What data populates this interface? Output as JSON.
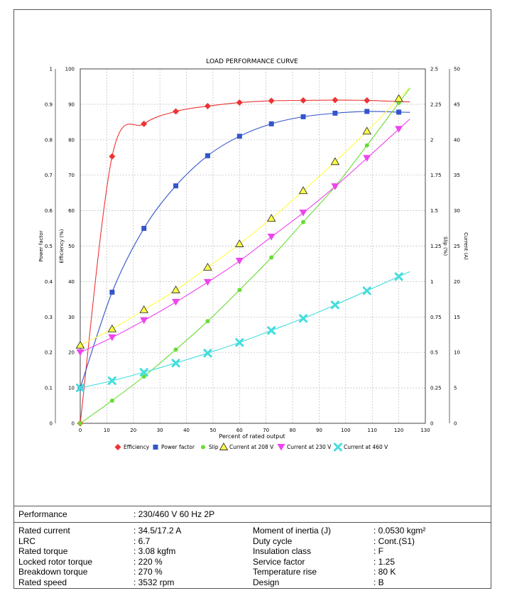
{
  "chart_data": {
    "type": "line",
    "title": "LOAD PERFORMANCE CURVE",
    "xlabel": "Percent of rated output",
    "xlim": [
      0,
      130
    ],
    "xticks": [
      0,
      10,
      20,
      30,
      40,
      50,
      60,
      70,
      80,
      90,
      100,
      110,
      120,
      130
    ],
    "grid": true,
    "legend_position": "bottom",
    "axes": {
      "power_factor": {
        "label": "Power factor",
        "range": [
          0,
          1
        ],
        "ticks": [
          "0",
          "0.1",
          "0.2",
          "0.3",
          "0.4",
          "0.5",
          "0.6",
          "0.7",
          "0.8",
          "0.9",
          "1"
        ]
      },
      "efficiency": {
        "label": "Efficiency (%)",
        "range": [
          0,
          100
        ],
        "ticks": [
          "0",
          "10",
          "20",
          "30",
          "40",
          "50",
          "60",
          "70",
          "80",
          "90",
          "100"
        ]
      },
      "slip": {
        "label": "Slip (%)",
        "range": [
          0,
          2.5
        ],
        "ticks": [
          "0",
          "0.25",
          "0.5",
          "0.75",
          "1",
          "1.25",
          "1.5",
          "1.75",
          "2",
          "2.25",
          "2.5"
        ]
      },
      "current": {
        "label": "Current (A)",
        "range": [
          0,
          50
        ],
        "ticks": [
          "0",
          "5",
          "10",
          "15",
          "20",
          "25",
          "30",
          "35",
          "40",
          "45",
          "50"
        ]
      }
    },
    "series": [
      {
        "name": "Efficiency",
        "axis": "efficiency",
        "color": "#ee3333",
        "marker": "diamond",
        "x": [
          0,
          12,
          24,
          36,
          48,
          60,
          72,
          84,
          96,
          108,
          120
        ],
        "y": [
          0,
          75.3,
          84.5,
          88,
          89.5,
          90.5,
          91,
          91.1,
          91.2,
          91.1,
          90.8
        ]
      },
      {
        "name": "Power factor",
        "axis": "power_factor",
        "color": "#3355cc",
        "marker": "square",
        "x": [
          0,
          12,
          24,
          36,
          48,
          60,
          72,
          84,
          96,
          108,
          120
        ],
        "y": [
          0.1,
          0.37,
          0.55,
          0.67,
          0.755,
          0.81,
          0.845,
          0.865,
          0.875,
          0.88,
          0.878
        ]
      },
      {
        "name": "Slip",
        "axis": "slip",
        "color": "#66dd33",
        "marker": "circle",
        "x": [
          0,
          12,
          24,
          36,
          48,
          60,
          72,
          84,
          96,
          108,
          120
        ],
        "y": [
          0,
          0.16,
          0.33,
          0.52,
          0.72,
          0.94,
          1.17,
          1.42,
          1.67,
          1.96,
          2.26
        ]
      },
      {
        "name": "Current at 208 V",
        "axis": "current",
        "color": "#ffff44",
        "marker": "triangle",
        "x": [
          0,
          12,
          24,
          36,
          48,
          60,
          72,
          84,
          96,
          108,
          120
        ],
        "y": [
          11,
          13.3,
          16,
          18.8,
          22,
          25.3,
          28.9,
          32.8,
          36.9,
          41.2,
          45.8
        ]
      },
      {
        "name": "Current at 230 V",
        "axis": "current",
        "color": "#ee44ee",
        "marker": "triangle-down",
        "x": [
          0,
          12,
          24,
          36,
          48,
          60,
          72,
          84,
          96,
          108,
          120
        ],
        "y": [
          10,
          12.1,
          14.5,
          17.1,
          19.9,
          22.9,
          26.3,
          29.7,
          33.4,
          37.4,
          41.5
        ]
      },
      {
        "name": "Current at 460 V",
        "axis": "current",
        "color": "#44dddd",
        "marker": "x",
        "x": [
          0,
          12,
          24,
          36,
          48,
          60,
          72,
          84,
          96,
          108,
          120
        ],
        "y": [
          5,
          6,
          7.2,
          8.5,
          9.9,
          11.4,
          13.1,
          14.8,
          16.7,
          18.7,
          20.7
        ]
      }
    ]
  },
  "performance": {
    "label": "Performance",
    "value": ": 230/460 V 60 Hz 2P"
  },
  "specs_left": [
    {
      "label": "Rated current",
      "value": ": 34.5/17.2 A"
    },
    {
      "label": "LRC",
      "value": ": 6.7"
    },
    {
      "label": "Rated torque",
      "value": ": 3.08 kgfm"
    },
    {
      "label": "Locked rotor torque",
      "value": ": 220 %"
    },
    {
      "label": "Breakdown torque",
      "value": ": 270 %"
    },
    {
      "label": "Rated speed",
      "value": ": 3532 rpm"
    }
  ],
  "specs_right": [
    {
      "label": "Moment of inertia (J)",
      "value": ": 0.0530 kgm²"
    },
    {
      "label": "Duty cycle",
      "value": ": Cont.(S1)"
    },
    {
      "label": "Insulation class",
      "value": ": F"
    },
    {
      "label": "Service factor",
      "value": ": 1.25"
    },
    {
      "label": "Temperature rise",
      "value": ": 80 K"
    },
    {
      "label": "Design",
      "value": ": B"
    }
  ]
}
